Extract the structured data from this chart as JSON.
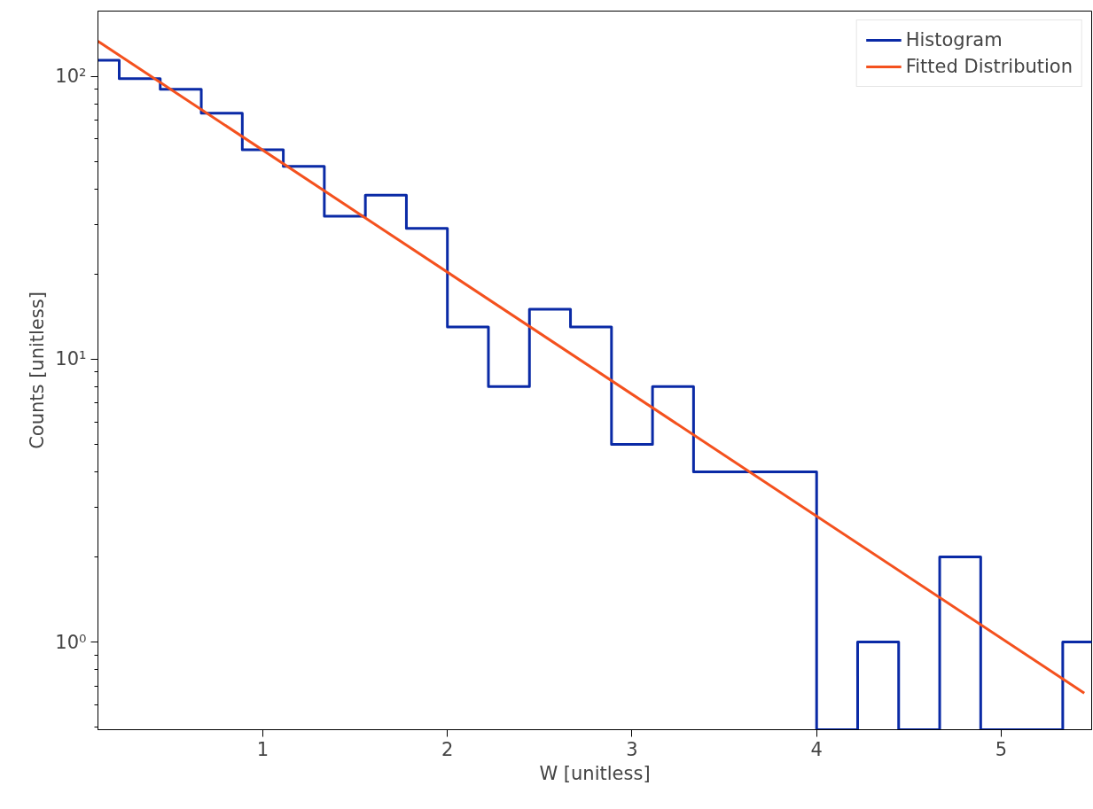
{
  "chart_data": {
    "type": "histogram",
    "xlabel": "W [unitless]",
    "ylabel": "Counts [unitless]",
    "log": "y",
    "bins": [
      0,
      0.2222,
      0.4444,
      0.6667,
      0.8889,
      1.1111,
      1.3333,
      1.5556,
      1.7778,
      2,
      2.2222,
      2.4444,
      2.6667,
      2.8889,
      3.1111,
      3.3333,
      3.5556,
      3.7778,
      4,
      4.2222,
      4.4444,
      4.6667,
      4.8889,
      5.1111,
      5.3333,
      5.5556
    ],
    "series": [
      {
        "name": "Histogram",
        "color": "#0a2aa6",
        "values": [
          114,
          98,
          90,
          74,
          55,
          48,
          32,
          38,
          29,
          13,
          8,
          15,
          13,
          5,
          8,
          4,
          4,
          4,
          null,
          1,
          null,
          2,
          null,
          null,
          1
        ]
      },
      {
        "name": "Fitted Distribution",
        "type": "line",
        "color": "#f4511e",
        "x": [
          0.107,
          5.45
        ],
        "values": [
          133,
          0.66
        ]
      }
    ],
    "xlim": [
      0.107,
      5.49
    ],
    "ylim": [
      0.49,
      170
    ],
    "xticks": [
      1,
      2,
      3,
      4,
      5
    ],
    "yticks": [
      {
        "value": 0.5,
        "label": null
      },
      {
        "value": 0.6,
        "label": null
      },
      {
        "value": 0.7,
        "label": null
      },
      {
        "value": 0.8,
        "label": null
      },
      {
        "value": 0.9,
        "label": null
      },
      {
        "value": 1,
        "label": "10⁰"
      },
      {
        "value": 2,
        "label": null
      },
      {
        "value": 3,
        "label": null
      },
      {
        "value": 4,
        "label": null
      },
      {
        "value": 5,
        "label": null
      },
      {
        "value": 6,
        "label": null
      },
      {
        "value": 7,
        "label": null
      },
      {
        "value": 8,
        "label": null
      },
      {
        "value": 9,
        "label": null
      },
      {
        "value": 10,
        "label": "10¹"
      },
      {
        "value": 20,
        "label": null
      },
      {
        "value": 30,
        "label": null
      },
      {
        "value": 40,
        "label": null
      },
      {
        "value": 50,
        "label": null
      },
      {
        "value": 60,
        "label": null
      },
      {
        "value": 70,
        "label": null
      },
      {
        "value": 80,
        "label": null
      },
      {
        "value": 90,
        "label": null
      },
      {
        "value": 100,
        "label": "10²"
      }
    ],
    "grid": false,
    "legend": "top right"
  }
}
